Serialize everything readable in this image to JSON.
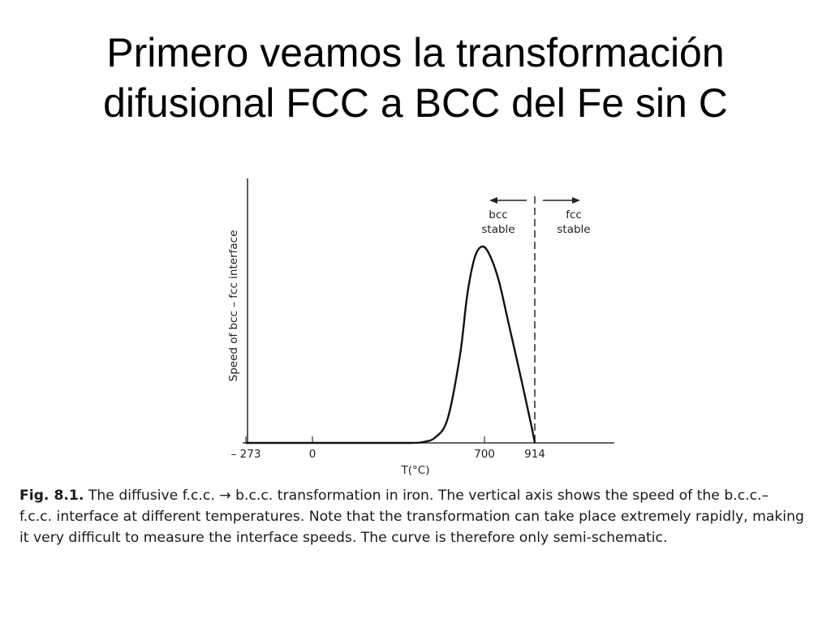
{
  "slide": {
    "title_line1": "Primero veamos la transformación",
    "title_line2": "difusional FCC a BCC del Fe sin C"
  },
  "chart_data": {
    "type": "line",
    "title": "",
    "xlabel": "T(°C)",
    "ylabel": "Speed of bcc – fcc interface",
    "x_ticks": [
      {
        "value": -273,
        "label": "– 273"
      },
      {
        "value": 0,
        "label": "0"
      },
      {
        "value": 700,
        "label": "700"
      },
      {
        "value": 914,
        "label": "914"
      }
    ],
    "xlim": [
      -273,
      1100
    ],
    "ylim": [
      0,
      1.2
    ],
    "y_ticks": [],
    "grid": false,
    "series": [
      {
        "values_note": "relative interface speed (unitless, semi-schematic)",
        "x": [
          -273,
          0,
          200,
          400,
          450,
          500,
          550,
          600,
          630,
          660,
          690,
          720,
          760,
          800,
          850,
          900,
          914
        ],
        "y": [
          0.0,
          0.0,
          0.0,
          0.0,
          0.005,
          0.03,
          0.13,
          0.47,
          0.8,
          1.0,
          1.06,
          1.02,
          0.88,
          0.66,
          0.38,
          0.09,
          0.0
        ]
      }
    ],
    "boundary": {
      "x": 914,
      "style": "dashed",
      "left_label_line1": "bcc",
      "left_label_line2": "stable",
      "right_label_line1": "fcc",
      "right_label_line2": "stable"
    }
  },
  "caption": {
    "label": "Fig. 8.1.",
    "line1": " The diffusive f.c.c. → b.c.c. transformation in iron. The vertical axis shows the speed of the b.c.c.–",
    "line2": "f.c.c. interface at different temperatures. Note that the transformation can take place extremely rapidly, making",
    "line3": "it very difficult to measure the interface speeds. The curve is therefore only semi-schematic."
  }
}
